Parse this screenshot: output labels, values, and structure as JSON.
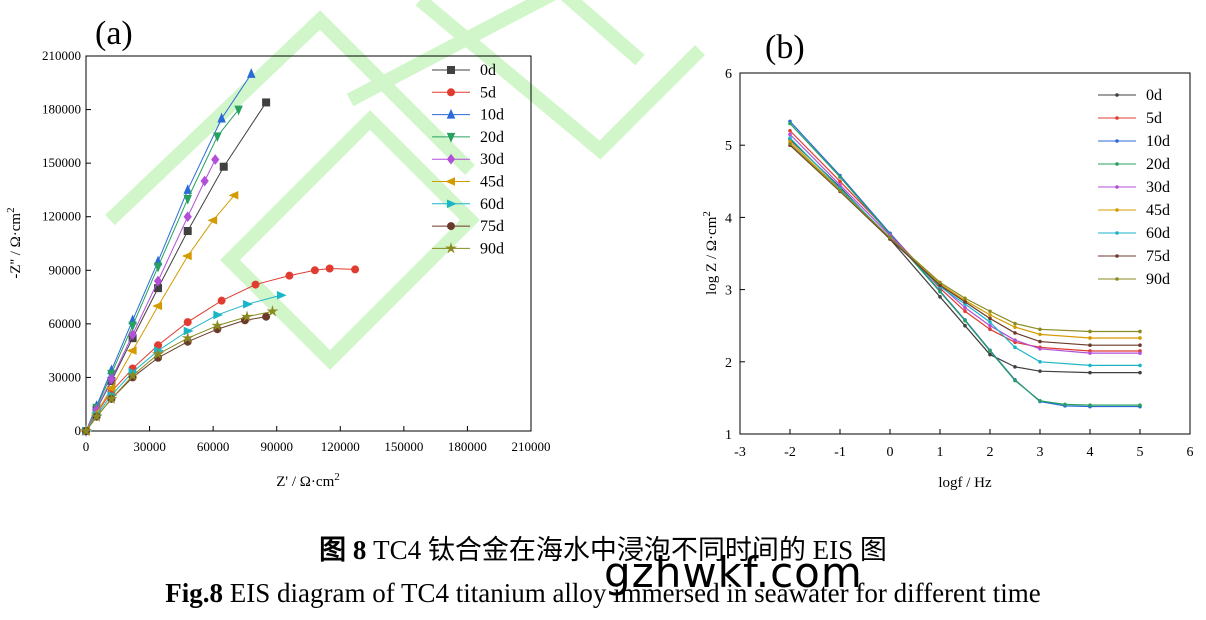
{
  "panels": [
    {
      "id": "a",
      "label": "(a)"
    },
    {
      "id": "b",
      "label": "(b)"
    }
  ],
  "chart_data": [
    {
      "type": "scatter",
      "panel": "(a)",
      "xlabel": "Z' / Ω·cm2",
      "ylabel": "-Z'' / Ω·cm2",
      "xlim": [
        0,
        210000
      ],
      "ylim": [
        0,
        210000
      ],
      "xticks": [
        0,
        30000,
        60000,
        90000,
        120000,
        150000,
        180000,
        210000
      ],
      "yticks": [
        0,
        30000,
        60000,
        90000,
        120000,
        150000,
        180000,
        210000
      ],
      "legend_position": "top-right",
      "grid": false,
      "series": [
        {
          "name": "0d",
          "color": "#404040",
          "marker": "square",
          "x": [
            0,
            5000,
            12000,
            22000,
            34000,
            48000,
            65000,
            85000
          ],
          "y": [
            0,
            12000,
            28000,
            52000,
            80000,
            112000,
            148000,
            184000
          ]
        },
        {
          "name": "5d",
          "color": "#e03c31",
          "marker": "circle",
          "x": [
            0,
            5000,
            12000,
            22000,
            34000,
            48000,
            64000,
            80000,
            96000,
            108000,
            115000,
            127000
          ],
          "y": [
            0,
            10000,
            22000,
            35000,
            48000,
            61000,
            73000,
            82000,
            87000,
            90000,
            91000,
            90500
          ]
        },
        {
          "name": "10d",
          "color": "#2a6bd8",
          "marker": "triangle-up",
          "x": [
            0,
            5000,
            12000,
            22000,
            34000,
            48000,
            64000,
            78000
          ],
          "y": [
            0,
            14000,
            34000,
            62000,
            95000,
            135000,
            175000,
            200000
          ]
        },
        {
          "name": "20d",
          "color": "#27a060",
          "marker": "triangle-down",
          "x": [
            0,
            5000,
            12000,
            22000,
            34000,
            48000,
            62000,
            72000
          ],
          "y": [
            0,
            13000,
            32000,
            59000,
            92000,
            130000,
            165000,
            180000
          ]
        },
        {
          "name": "30d",
          "color": "#b34fd8",
          "marker": "diamond",
          "x": [
            0,
            5000,
            12000,
            22000,
            34000,
            48000,
            56000,
            61000
          ],
          "y": [
            0,
            12000,
            29000,
            54000,
            84000,
            120000,
            140000,
            152000
          ]
        },
        {
          "name": "45d",
          "color": "#d49b00",
          "marker": "triangle-left",
          "x": [
            0,
            5000,
            12000,
            22000,
            34000,
            48000,
            60000,
            70000
          ],
          "y": [
            0,
            10000,
            24000,
            45000,
            70000,
            98000,
            118000,
            132000
          ]
        },
        {
          "name": "60d",
          "color": "#1ab6c8",
          "marker": "triangle-right",
          "x": [
            0,
            5000,
            12000,
            22000,
            34000,
            48000,
            62000,
            76000,
            92000
          ],
          "y": [
            0,
            9000,
            20000,
            33000,
            45000,
            56000,
            65000,
            71000,
            76000
          ]
        },
        {
          "name": "75d",
          "color": "#6b3a2a",
          "marker": "circle",
          "x": [
            0,
            5000,
            12000,
            22000,
            34000,
            48000,
            62000,
            75000,
            85000
          ],
          "y": [
            0,
            8000,
            18000,
            30000,
            41000,
            50000,
            57000,
            62000,
            64000
          ]
        },
        {
          "name": "90d",
          "color": "#8a8a20",
          "marker": "star",
          "x": [
            0,
            5000,
            12000,
            22000,
            34000,
            48000,
            62000,
            76000,
            88000
          ],
          "y": [
            0,
            8000,
            18000,
            31000,
            43000,
            52000,
            59000,
            64000,
            67000
          ]
        }
      ]
    },
    {
      "type": "line",
      "panel": "(b)",
      "xlabel": "logf / Hz",
      "ylabel": "log Z / Ω·cm2",
      "xlim": [
        -3,
        6
      ],
      "ylim": [
        1,
        6
      ],
      "xticks": [
        -3,
        -2,
        -1,
        0,
        1,
        2,
        3,
        4,
        5,
        6
      ],
      "yticks": [
        1,
        2,
        3,
        4,
        5,
        6
      ],
      "legend_position": "top-right",
      "grid": false,
      "series": [
        {
          "name": "0d",
          "color": "#404040",
          "x": [
            -2,
            -1,
            0,
            1,
            1.5,
            2,
            2.5,
            3,
            4,
            5
          ],
          "y": [
            5.08,
            4.42,
            3.7,
            2.9,
            2.5,
            2.1,
            1.93,
            1.87,
            1.85,
            1.85
          ]
        },
        {
          "name": "5d",
          "color": "#e03c31",
          "x": [
            -2,
            -1,
            0,
            1,
            1.5,
            2,
            2.5,
            3,
            4,
            5
          ],
          "y": [
            5.2,
            4.5,
            3.78,
            3.02,
            2.7,
            2.45,
            2.27,
            2.2,
            2.15,
            2.15
          ]
        },
        {
          "name": "10d",
          "color": "#2a6bd8",
          "x": [
            -2,
            -1,
            0,
            1,
            1.5,
            2,
            2.5,
            3,
            3.5,
            4,
            5
          ],
          "y": [
            5.33,
            4.58,
            3.78,
            2.98,
            2.58,
            2.16,
            1.75,
            1.45,
            1.39,
            1.38,
            1.38
          ]
        },
        {
          "name": "20d",
          "color": "#27a060",
          "x": [
            -2,
            -1,
            0,
            1,
            1.5,
            2,
            2.5,
            3,
            3.5,
            4,
            5
          ],
          "y": [
            5.3,
            4.56,
            3.76,
            2.97,
            2.57,
            2.15,
            1.74,
            1.46,
            1.41,
            1.4,
            1.4
          ]
        },
        {
          "name": "30d",
          "color": "#b34fd8",
          "x": [
            -2,
            -1,
            0,
            1,
            1.5,
            2,
            2.5,
            3,
            4,
            5
          ],
          "y": [
            5.15,
            4.45,
            3.75,
            3.06,
            2.75,
            2.5,
            2.3,
            2.18,
            2.12,
            2.12
          ]
        },
        {
          "name": "45d",
          "color": "#d49b00",
          "x": [
            -2,
            -1,
            0,
            1,
            1.5,
            2,
            2.5,
            3,
            4,
            5
          ],
          "y": [
            5.05,
            4.38,
            3.7,
            3.08,
            2.85,
            2.65,
            2.48,
            2.38,
            2.33,
            2.33
          ]
        },
        {
          "name": "60d",
          "color": "#1ab6c8",
          "x": [
            -2,
            -1,
            0,
            1,
            1.5,
            2,
            2.5,
            3,
            4,
            5
          ],
          "y": [
            5.1,
            4.4,
            3.72,
            3.04,
            2.8,
            2.55,
            2.2,
            2.0,
            1.95,
            1.95
          ]
        },
        {
          "name": "75d",
          "color": "#6b3a2a",
          "x": [
            -2,
            -1,
            0,
            1,
            1.5,
            2,
            2.5,
            3,
            4,
            5
          ],
          "y": [
            5.0,
            4.36,
            3.7,
            3.06,
            2.83,
            2.6,
            2.4,
            2.28,
            2.23,
            2.23
          ]
        },
        {
          "name": "90d",
          "color": "#8a8a20",
          "x": [
            -2,
            -1,
            0,
            1,
            1.5,
            2,
            2.5,
            3,
            4,
            5
          ],
          "y": [
            5.02,
            4.37,
            3.72,
            3.1,
            2.88,
            2.7,
            2.53,
            2.45,
            2.42,
            2.42
          ]
        }
      ]
    }
  ],
  "caption": {
    "cn_prefix": "图 8",
    "cn_text": " TC4 钛合金在海水中浸泡不同时间的 EIS 图",
    "en_prefix": "Fig.8",
    "en_text": " EIS diagram of TC4 titanium alloy immersed in seawater for different time"
  },
  "watermark": "gzhwkf.com"
}
